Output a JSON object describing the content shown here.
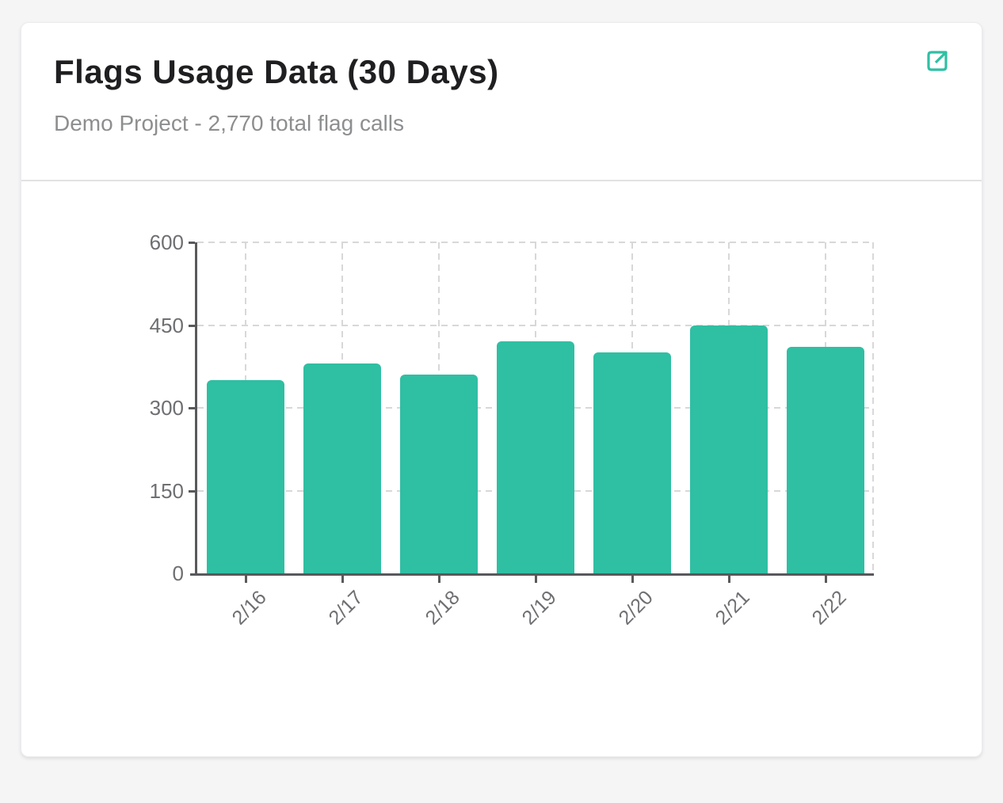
{
  "page": {
    "background_color": "#f5f5f6"
  },
  "card": {
    "title": "Flags Usage Data (30 Days)",
    "subtitle": "Demo Project - 2,770 total flag calls",
    "accent_color": "#2fbfa3",
    "expand_icon": "external-link-icon"
  },
  "chart_data": {
    "type": "bar",
    "title": "Flags Usage Data (30 Days)",
    "subtitle": "Demo Project - 2,770 total flag calls",
    "categories": [
      "2/16",
      "2/17",
      "2/18",
      "2/19",
      "2/20",
      "2/21",
      "2/22"
    ],
    "values": [
      350,
      380,
      360,
      420,
      400,
      450,
      410
    ],
    "total_flag_calls": 2770,
    "xlabel": "",
    "ylabel": "",
    "ylim": [
      0,
      600
    ],
    "yticks": [
      0,
      150,
      300,
      450,
      600
    ],
    "x_label_rotation": -45,
    "grid": true,
    "legend": false,
    "bar_color": "#2fbfa3",
    "grid_color": "#d8d8da",
    "axis_color": "#58595b",
    "tick_label_color": "#6e6f72"
  }
}
